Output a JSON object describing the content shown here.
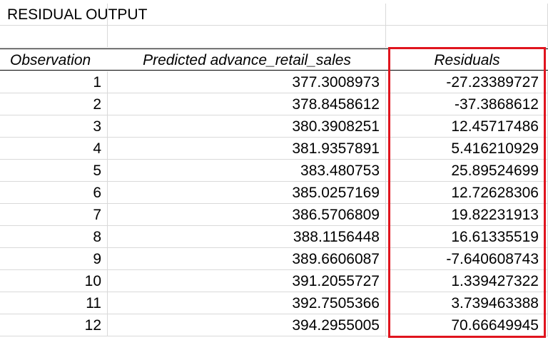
{
  "title": "RESIDUAL OUTPUT",
  "columns": {
    "observation": "Observation",
    "predicted": "Predicted advance_retail_sales",
    "residuals": "Residuals"
  },
  "rows": [
    {
      "observation": "1",
      "predicted": "377.3008973",
      "residual": "-27.23389727"
    },
    {
      "observation": "2",
      "predicted": "378.8458612",
      "residual": "-37.3868612"
    },
    {
      "observation": "3",
      "predicted": "380.3908251",
      "residual": "12.45717486"
    },
    {
      "observation": "4",
      "predicted": "381.9357891",
      "residual": "5.416210929"
    },
    {
      "observation": "5",
      "predicted": "383.480753",
      "residual": "25.89524699"
    },
    {
      "observation": "6",
      "predicted": "385.0257169",
      "residual": "12.72628306"
    },
    {
      "observation": "7",
      "predicted": "386.5706809",
      "residual": "19.82231913"
    },
    {
      "observation": "8",
      "predicted": "388.1156448",
      "residual": "16.61335519"
    },
    {
      "observation": "9",
      "predicted": "389.6606087",
      "residual": "-7.640608743"
    },
    {
      "observation": "10",
      "predicted": "391.2055727",
      "residual": "1.339427322"
    },
    {
      "observation": "11",
      "predicted": "392.7505366",
      "residual": "3.739463388"
    },
    {
      "observation": "12",
      "predicted": "394.2955005",
      "residual": "70.66649945"
    }
  ],
  "highlight_color": "#e0141e"
}
